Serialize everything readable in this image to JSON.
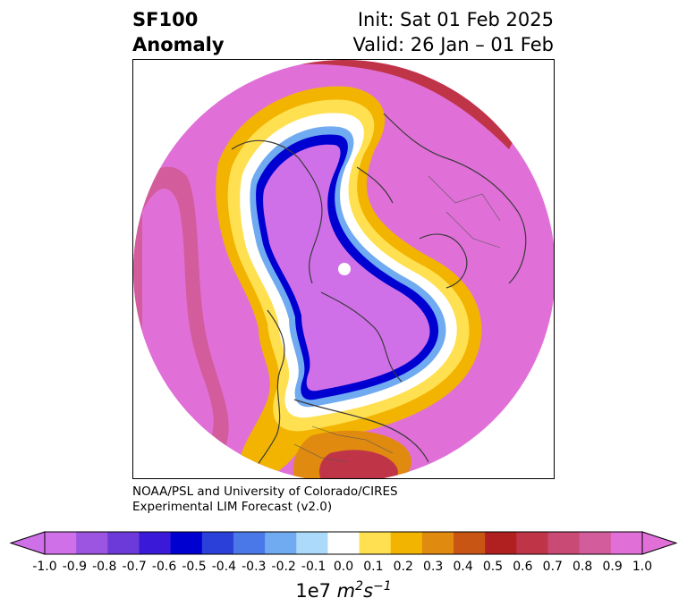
{
  "header": {
    "field": "SF100",
    "subtitle": "Anomaly",
    "init": "Init: Sat 01 Feb 2025",
    "valid": "Valid: 26 Jan – 01 Feb"
  },
  "credit": {
    "line1": "NOAA/PSL and University of Colorado/CIRES",
    "line2": "Experimental LIM Forecast (v2.0)"
  },
  "colorbar": {
    "ticks": [
      "-1.0",
      "-0.9",
      "-0.8",
      "-0.7",
      "-0.6",
      "-0.5",
      "-0.4",
      "-0.3",
      "-0.2",
      "-0.1",
      "0.0",
      "0.1",
      "0.2",
      "0.3",
      "0.4",
      "0.5",
      "0.6",
      "0.7",
      "0.8",
      "0.9",
      "1.0"
    ],
    "colors": [
      "#d070e8",
      "#9c55e0",
      "#6c3ad8",
      "#3a1ad8",
      "#0000d0",
      "#2a40d8",
      "#4a78e8",
      "#70aaf0",
      "#acdafa",
      "#ffffff",
      "#ffe050",
      "#f2b400",
      "#e08a10",
      "#c85514",
      "#b02020",
      "#c03448",
      "#c94a74",
      "#d35c9c",
      "#e070d8"
    ],
    "label_prefix": "1e7 ",
    "label_unit": "m",
    "label_exp1": "2",
    "label_mid": "s",
    "label_exp2": "−1",
    "extend": "both"
  },
  "map": {
    "projection": "north-polar-stereographic",
    "field_colors": {
      "strong_positive": "#e070d8",
      "positive_ring": "#c94a74",
      "negative_core": "#d070e8",
      "blue_edge": "#0000d0",
      "yellow_edge": "#ffe050",
      "orange_edge": "#e08a10",
      "coastline": "#3a3a3a"
    }
  }
}
